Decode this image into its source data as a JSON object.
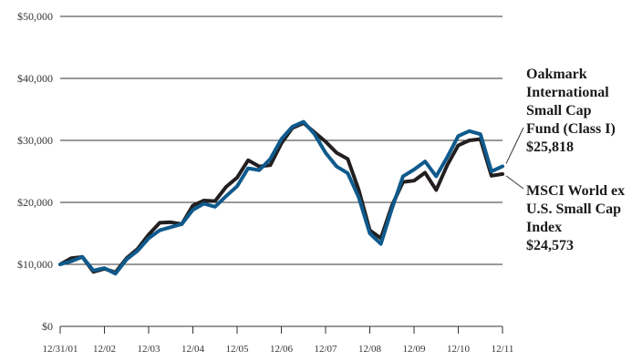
{
  "chart_data": {
    "type": "line",
    "ylim": [
      0,
      50000
    ],
    "y_ticks": [
      0,
      10000,
      20000,
      30000,
      40000,
      50000
    ],
    "y_tick_labels": [
      "$0",
      "$10,000",
      "$20,000",
      "$30,000",
      "$40,000",
      "$50,000"
    ],
    "x_tick_labels": [
      "12/31/01",
      "12/02",
      "12/03",
      "12/04",
      "12/05",
      "12/06",
      "12/07",
      "12/08",
      "12/09",
      "12/10",
      "12/11"
    ],
    "x_range": [
      2001.0,
      2011.0
    ],
    "grid": "horizontal",
    "series": [
      {
        "name": "MSCI World ex U.S. Small Cap Index",
        "color": "#231f20",
        "ending_value_label": "$24,573",
        "x": [
          2001.0,
          2001.25,
          2001.5,
          2001.75,
          2002.0,
          2002.25,
          2002.5,
          2002.75,
          2003.0,
          2003.25,
          2003.5,
          2003.75,
          2004.0,
          2004.25,
          2004.5,
          2004.75,
          2005.0,
          2005.25,
          2005.5,
          2005.75,
          2006.0,
          2006.25,
          2006.5,
          2006.75,
          2007.0,
          2007.25,
          2007.5,
          2007.75,
          2008.0,
          2008.25,
          2008.5,
          2008.75,
          2009.0,
          2009.25,
          2009.5,
          2009.75,
          2010.0,
          2010.25,
          2010.5,
          2010.75,
          2011.0
        ],
        "values": [
          10000,
          11000,
          11200,
          8800,
          9300,
          8700,
          11000,
          12500,
          14800,
          16700,
          16800,
          16500,
          19500,
          20300,
          20200,
          22500,
          24000,
          26800,
          25800,
          26000,
          29500,
          32000,
          32800,
          31300,
          29800,
          28000,
          27000,
          22000,
          15500,
          14200,
          19500,
          23300,
          23500,
          24800,
          22000,
          26000,
          29200,
          30000,
          30200,
          24300,
          24573
        ]
      },
      {
        "name": "Oakmark International Small Cap Fund (Class I)",
        "color": "#0f5a8c",
        "ending_value_label": "$25,818",
        "x": [
          2001.0,
          2001.25,
          2001.5,
          2001.75,
          2002.0,
          2002.25,
          2002.5,
          2002.75,
          2003.0,
          2003.25,
          2003.5,
          2003.75,
          2004.0,
          2004.25,
          2004.5,
          2004.75,
          2005.0,
          2005.25,
          2005.5,
          2005.75,
          2006.0,
          2006.25,
          2006.5,
          2006.75,
          2007.0,
          2007.25,
          2007.5,
          2007.75,
          2008.0,
          2008.25,
          2008.5,
          2008.75,
          2009.0,
          2009.25,
          2009.5,
          2009.75,
          2010.0,
          2010.25,
          2010.5,
          2010.75,
          2011.0
        ],
        "values": [
          10000,
          10500,
          11200,
          9000,
          9400,
          8500,
          10800,
          12200,
          14200,
          15500,
          16000,
          16500,
          18800,
          19800,
          19300,
          21000,
          22600,
          25500,
          25200,
          27000,
          30200,
          32200,
          33000,
          31000,
          28000,
          25800,
          24700,
          20800,
          15000,
          13300,
          19000,
          24200,
          25300,
          26600,
          24200,
          27300,
          30700,
          31500,
          31000,
          25000,
          25818
        ]
      }
    ]
  },
  "labels": {
    "fund": [
      "Oakmark",
      "International",
      "Small Cap",
      "Fund (Class I)",
      "$25,818"
    ],
    "index": [
      "MSCI World ex",
      "U.S. Small Cap",
      "Index",
      "$24,573"
    ]
  }
}
